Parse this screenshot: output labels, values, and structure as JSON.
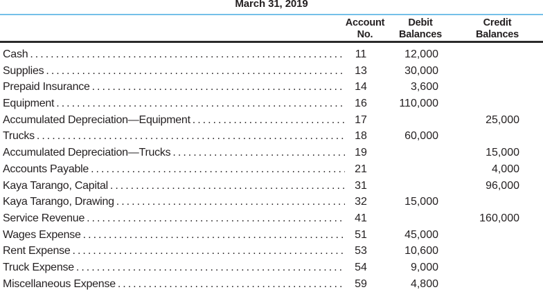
{
  "header": {
    "date_title": "March 31, 2019"
  },
  "table": {
    "columns": [
      {
        "id": "account_no",
        "line1": "Account",
        "line2": "No."
      },
      {
        "id": "debit",
        "line1": "Debit",
        "line2": "Balances"
      },
      {
        "id": "credit",
        "line1": "Credit",
        "line2": "Balances"
      }
    ],
    "rows": [
      {
        "account": "Cash",
        "no": "11",
        "debit": "12,000",
        "credit": ""
      },
      {
        "account": "Supplies",
        "no": "13",
        "debit": "30,000",
        "credit": ""
      },
      {
        "account": "Prepaid Insurance",
        "no": "14",
        "debit": "3,600",
        "credit": ""
      },
      {
        "account": "Equipment",
        "no": "16",
        "debit": "110,000",
        "credit": ""
      },
      {
        "account": "Accumulated Depreciation—Equipment",
        "no": "17",
        "debit": "",
        "credit": "25,000"
      },
      {
        "account": "Trucks",
        "no": "18",
        "debit": "60,000",
        "credit": ""
      },
      {
        "account": "Accumulated Depreciation—Trucks",
        "no": "19",
        "debit": "",
        "credit": "15,000"
      },
      {
        "account": "Accounts Payable",
        "no": "21",
        "debit": "",
        "credit": "4,000"
      },
      {
        "account": "Kaya Tarango, Capital",
        "no": "31",
        "debit": "",
        "credit": "96,000"
      },
      {
        "account": "Kaya Tarango, Drawing",
        "no": "32",
        "debit": "15,000",
        "credit": ""
      },
      {
        "account": "Service Revenue",
        "no": "41",
        "debit": "",
        "credit": "160,000"
      },
      {
        "account": "Wages Expense",
        "no": "51",
        "debit": "45,000",
        "credit": ""
      },
      {
        "account": "Rent Expense",
        "no": "53",
        "debit": "10,600",
        "credit": ""
      },
      {
        "account": "Truck Expense",
        "no": "54",
        "debit": "9,000",
        "credit": ""
      },
      {
        "account": "Miscellaneous Expense",
        "no": "59",
        "debit": "4,800",
        "credit": ""
      }
    ]
  },
  "colors": {
    "rule_blue": "#74c0e8",
    "ink": "#231f20"
  }
}
